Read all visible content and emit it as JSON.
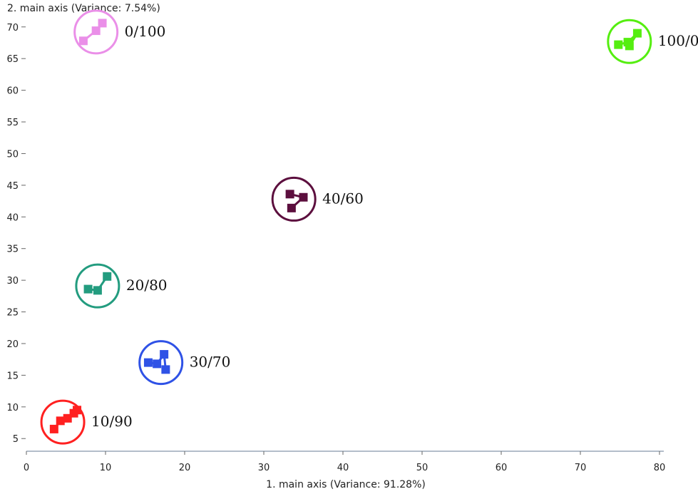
{
  "chart_data": {
    "type": "scatter",
    "xlabel": "1. main axis (Variance: 91.28%)",
    "ylabel": "2. main axis (Variance: 7.54%)",
    "xlim": [
      0,
      80
    ],
    "ylim": [
      3,
      72
    ],
    "xticks": [
      "0",
      "10",
      "20",
      "30",
      "40",
      "50",
      "60",
      "70",
      "80"
    ],
    "yticks": [
      "5",
      "10",
      "15",
      "20",
      "25",
      "30",
      "35",
      "40",
      "45",
      "50",
      "55",
      "60",
      "65",
      "70"
    ],
    "grid": false,
    "series": [
      {
        "name": "0/100",
        "color": "#ea8fe8",
        "circle_center": [
          8.8,
          69.2
        ],
        "points": [
          [
            7.2,
            67.8
          ],
          [
            8.8,
            69.4
          ],
          [
            9.6,
            70.6
          ]
        ]
      },
      {
        "name": "10/90",
        "color": "#ff2020",
        "circle_center": [
          4.6,
          7.6
        ],
        "points": [
          [
            3.5,
            6.5
          ],
          [
            4.3,
            7.8
          ],
          [
            5.2,
            8.2
          ],
          [
            6.0,
            9.0
          ],
          [
            6.4,
            9.5
          ]
        ]
      },
      {
        "name": "20/80",
        "color": "#239c7f",
        "circle_center": [
          9.0,
          29.1
        ],
        "points": [
          [
            7.8,
            28.6
          ],
          [
            9.0,
            28.4
          ],
          [
            10.2,
            30.6
          ]
        ]
      },
      {
        "name": "30/70",
        "color": "#2f52e6",
        "circle_center": [
          17.0,
          17.0
        ],
        "points": [
          [
            15.4,
            17.0
          ],
          [
            16.5,
            16.8
          ],
          [
            17.4,
            18.3
          ],
          [
            17.6,
            15.9
          ]
        ]
      },
      {
        "name": "40/60",
        "color": "#5c0f3e",
        "circle_center": [
          33.8,
          42.8
        ],
        "points": [
          [
            33.3,
            43.6
          ],
          [
            35.0,
            43.1
          ],
          [
            33.5,
            41.4
          ]
        ]
      },
      {
        "name": "100/0",
        "color": "#55ee10",
        "circle_center": [
          76.2,
          67.7
        ],
        "points": [
          [
            74.8,
            67.2
          ],
          [
            76.0,
            67.6
          ],
          [
            77.2,
            69.0
          ],
          [
            76.2,
            67.0
          ]
        ]
      }
    ]
  }
}
